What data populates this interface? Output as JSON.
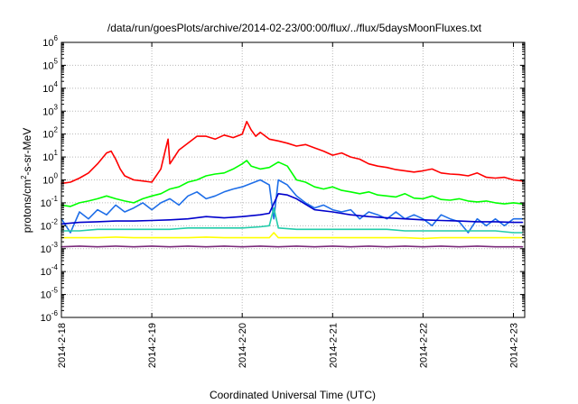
{
  "chart_data": {
    "type": "line",
    "title": "/data/run/goesPlots/archive/2014-02-23/00:00/flux/../flux/5daysMoonFluxes.txt",
    "xlabel": "Coordinated Universal Time (UTC)",
    "ylabel_parts": {
      "pre": "protons/cm",
      "sup": "2",
      "post": "-s-sr-MeV"
    },
    "yscale": "log",
    "ylim_exp": [
      -6,
      6
    ],
    "xlim": [
      "2014-02-18",
      "2014-02-23 03:00"
    ],
    "grid": true,
    "x_ticks": [
      "2014-2-18",
      "2014-2-19",
      "2014-2-20",
      "2014-2-21",
      "2014-2-22",
      "2014-2-23"
    ],
    "y_ticks": [
      {
        "base": "10",
        "exp": "-6"
      },
      {
        "base": "10",
        "exp": "-5"
      },
      {
        "base": "10",
        "exp": "-4"
      },
      {
        "base": "10",
        "exp": "-3"
      },
      {
        "base": "10",
        "exp": "-2"
      },
      {
        "base": "10",
        "exp": "-1"
      },
      {
        "base": "10",
        "exp": "0"
      },
      {
        "base": "10",
        "exp": "1"
      },
      {
        "base": "10",
        "exp": "2"
      },
      {
        "base": "10",
        "exp": "3"
      },
      {
        "base": "10",
        "exp": "4"
      },
      {
        "base": "10",
        "exp": "5"
      },
      {
        "base": "10",
        "exp": "6"
      }
    ],
    "series": [
      {
        "color": "#ff0000",
        "x_days": [
          0,
          0.1,
          0.2,
          0.3,
          0.4,
          0.5,
          0.55,
          0.6,
          0.65,
          0.7,
          0.8,
          0.9,
          1.0,
          1.1,
          1.15,
          1.18,
          1.2,
          1.25,
          1.3,
          1.4,
          1.5,
          1.6,
          1.7,
          1.8,
          1.9,
          2.0,
          2.05,
          2.1,
          2.15,
          2.2,
          2.3,
          2.4,
          2.5,
          2.6,
          2.7,
          2.8,
          2.9,
          3.0,
          3.1,
          3.2,
          3.3,
          3.4,
          3.5,
          3.6,
          3.7,
          3.8,
          3.9,
          4.0,
          4.1,
          4.2,
          4.3,
          4.4,
          4.5,
          4.6,
          4.7,
          4.8,
          4.9,
          5.0,
          5.1
        ],
        "y": [
          0.7,
          0.8,
          1.2,
          2,
          5,
          15,
          18,
          8,
          3,
          1.5,
          1,
          0.9,
          0.8,
          3,
          20,
          60,
          5,
          10,
          20,
          40,
          80,
          80,
          60,
          90,
          70,
          100,
          350,
          150,
          80,
          120,
          60,
          50,
          40,
          30,
          35,
          25,
          18,
          12,
          15,
          10,
          8,
          5,
          4,
          3.5,
          2.8,
          2.5,
          2.2,
          2.5,
          3,
          2,
          1.8,
          1.7,
          1.5,
          2,
          1.3,
          1.2,
          1.3,
          1.0,
          0.9
        ]
      },
      {
        "color": "#00ff00",
        "x_days": [
          0,
          0.1,
          0.2,
          0.3,
          0.4,
          0.5,
          0.6,
          0.7,
          0.8,
          0.9,
          1.0,
          1.1,
          1.2,
          1.3,
          1.4,
          1.5,
          1.6,
          1.7,
          1.8,
          1.9,
          2.0,
          2.05,
          2.1,
          2.2,
          2.3,
          2.4,
          2.5,
          2.6,
          2.7,
          2.8,
          2.9,
          3.0,
          3.1,
          3.2,
          3.3,
          3.4,
          3.5,
          3.6,
          3.7,
          3.8,
          3.9,
          4.0,
          4.1,
          4.2,
          4.3,
          4.4,
          4.5,
          4.6,
          4.7,
          4.8,
          4.9,
          5.0,
          5.1
        ],
        "y": [
          0.08,
          0.07,
          0.1,
          0.12,
          0.15,
          0.2,
          0.15,
          0.12,
          0.1,
          0.15,
          0.2,
          0.25,
          0.4,
          0.5,
          0.8,
          1.0,
          1.5,
          1.8,
          2.0,
          3.0,
          5.0,
          7.0,
          4.0,
          3.0,
          3.5,
          6.0,
          4.0,
          1.0,
          0.8,
          0.5,
          0.4,
          0.5,
          0.35,
          0.3,
          0.25,
          0.3,
          0.22,
          0.2,
          0.18,
          0.25,
          0.16,
          0.15,
          0.2,
          0.14,
          0.13,
          0.15,
          0.12,
          0.11,
          0.12,
          0.1,
          0.09,
          0.1,
          0.09
        ]
      },
      {
        "color": "#1e6ee8",
        "x_days": [
          0,
          0.1,
          0.2,
          0.3,
          0.4,
          0.5,
          0.6,
          0.7,
          0.8,
          0.9,
          1.0,
          1.1,
          1.2,
          1.3,
          1.4,
          1.5,
          1.6,
          1.7,
          1.8,
          1.9,
          2.0,
          2.1,
          2.2,
          2.3,
          2.35,
          2.4,
          2.5,
          2.6,
          2.7,
          2.8,
          2.9,
          3.0,
          3.1,
          3.2,
          3.3,
          3.4,
          3.5,
          3.6,
          3.7,
          3.8,
          3.9,
          4.0,
          4.1,
          4.2,
          4.3,
          4.4,
          4.5,
          4.6,
          4.7,
          4.8,
          4.9,
          5.0,
          5.1
        ],
        "y": [
          0.02,
          0.005,
          0.04,
          0.02,
          0.05,
          0.03,
          0.08,
          0.04,
          0.06,
          0.1,
          0.05,
          0.1,
          0.15,
          0.08,
          0.2,
          0.3,
          0.15,
          0.2,
          0.3,
          0.4,
          0.5,
          0.7,
          1.0,
          0.6,
          0.02,
          1.0,
          0.6,
          0.2,
          0.1,
          0.06,
          0.08,
          0.05,
          0.04,
          0.05,
          0.02,
          0.04,
          0.03,
          0.02,
          0.04,
          0.02,
          0.03,
          0.02,
          0.01,
          0.03,
          0.02,
          0.015,
          0.005,
          0.02,
          0.01,
          0.02,
          0.01,
          0.02,
          0.02
        ]
      },
      {
        "color": "#0000cc",
        "x_days": [
          0,
          0.2,
          0.4,
          0.6,
          0.8,
          1.0,
          1.2,
          1.4,
          1.6,
          1.8,
          2.0,
          2.2,
          2.3,
          2.4,
          2.5,
          2.6,
          2.8,
          3.0,
          3.2,
          3.4,
          3.6,
          3.8,
          4.0,
          4.2,
          4.4,
          4.6,
          4.8,
          5.0,
          5.1
        ],
        "y": [
          0.012,
          0.014,
          0.015,
          0.016,
          0.016,
          0.017,
          0.018,
          0.02,
          0.025,
          0.022,
          0.025,
          0.03,
          0.035,
          0.25,
          0.22,
          0.15,
          0.05,
          0.04,
          0.03,
          0.025,
          0.022,
          0.02,
          0.018,
          0.017,
          0.016,
          0.015,
          0.015,
          0.014,
          0.014
        ]
      },
      {
        "color": "#22ccaa",
        "x_days": [
          0,
          0.2,
          0.4,
          0.6,
          0.8,
          1.0,
          1.2,
          1.4,
          1.6,
          1.8,
          2.0,
          2.2,
          2.3,
          2.35,
          2.4,
          2.6,
          2.8,
          3.0,
          3.2,
          3.4,
          3.6,
          3.8,
          4.0,
          4.2,
          4.4,
          4.6,
          4.8,
          5.0,
          5.1
        ],
        "y": [
          0.006,
          0.006,
          0.007,
          0.007,
          0.007,
          0.007,
          0.007,
          0.008,
          0.008,
          0.008,
          0.008,
          0.009,
          0.01,
          0.06,
          0.008,
          0.007,
          0.007,
          0.007,
          0.007,
          0.007,
          0.007,
          0.006,
          0.006,
          0.006,
          0.006,
          0.006,
          0.006,
          0.005,
          0.005
        ]
      },
      {
        "color": "#ffff00",
        "x_days": [
          0,
          0.2,
          0.4,
          0.6,
          0.8,
          1.0,
          1.2,
          1.4,
          1.6,
          1.8,
          2.0,
          2.2,
          2.3,
          2.35,
          2.4,
          2.6,
          2.8,
          3.0,
          3.2,
          3.4,
          3.6,
          3.8,
          4.0,
          4.2,
          4.4,
          4.6,
          4.8,
          5.0,
          5.1
        ],
        "y": [
          0.003,
          0.003,
          0.003,
          0.0032,
          0.003,
          0.003,
          0.003,
          0.003,
          0.0032,
          0.003,
          0.003,
          0.003,
          0.003,
          0.005,
          0.003,
          0.003,
          0.003,
          0.003,
          0.003,
          0.003,
          0.003,
          0.003,
          0.0028,
          0.003,
          0.003,
          0.003,
          0.003,
          0.003,
          0.003
        ]
      },
      {
        "color": "#7a2a7a",
        "x_days": [
          0,
          0.2,
          0.4,
          0.6,
          0.8,
          1.0,
          1.2,
          1.4,
          1.6,
          1.8,
          2.0,
          2.2,
          2.4,
          2.6,
          2.8,
          3.0,
          3.2,
          3.4,
          3.6,
          3.8,
          4.0,
          4.2,
          4.4,
          4.6,
          4.8,
          5.0,
          5.1
        ],
        "y": [
          0.0012,
          0.0013,
          0.0012,
          0.0013,
          0.0012,
          0.0013,
          0.0012,
          0.0013,
          0.0012,
          0.0013,
          0.0012,
          0.0013,
          0.0012,
          0.0013,
          0.0012,
          0.0013,
          0.0012,
          0.0013,
          0.0012,
          0.0013,
          0.0012,
          0.0013,
          0.0012,
          0.0013,
          0.0012,
          0.0012,
          0.0012
        ]
      }
    ]
  }
}
